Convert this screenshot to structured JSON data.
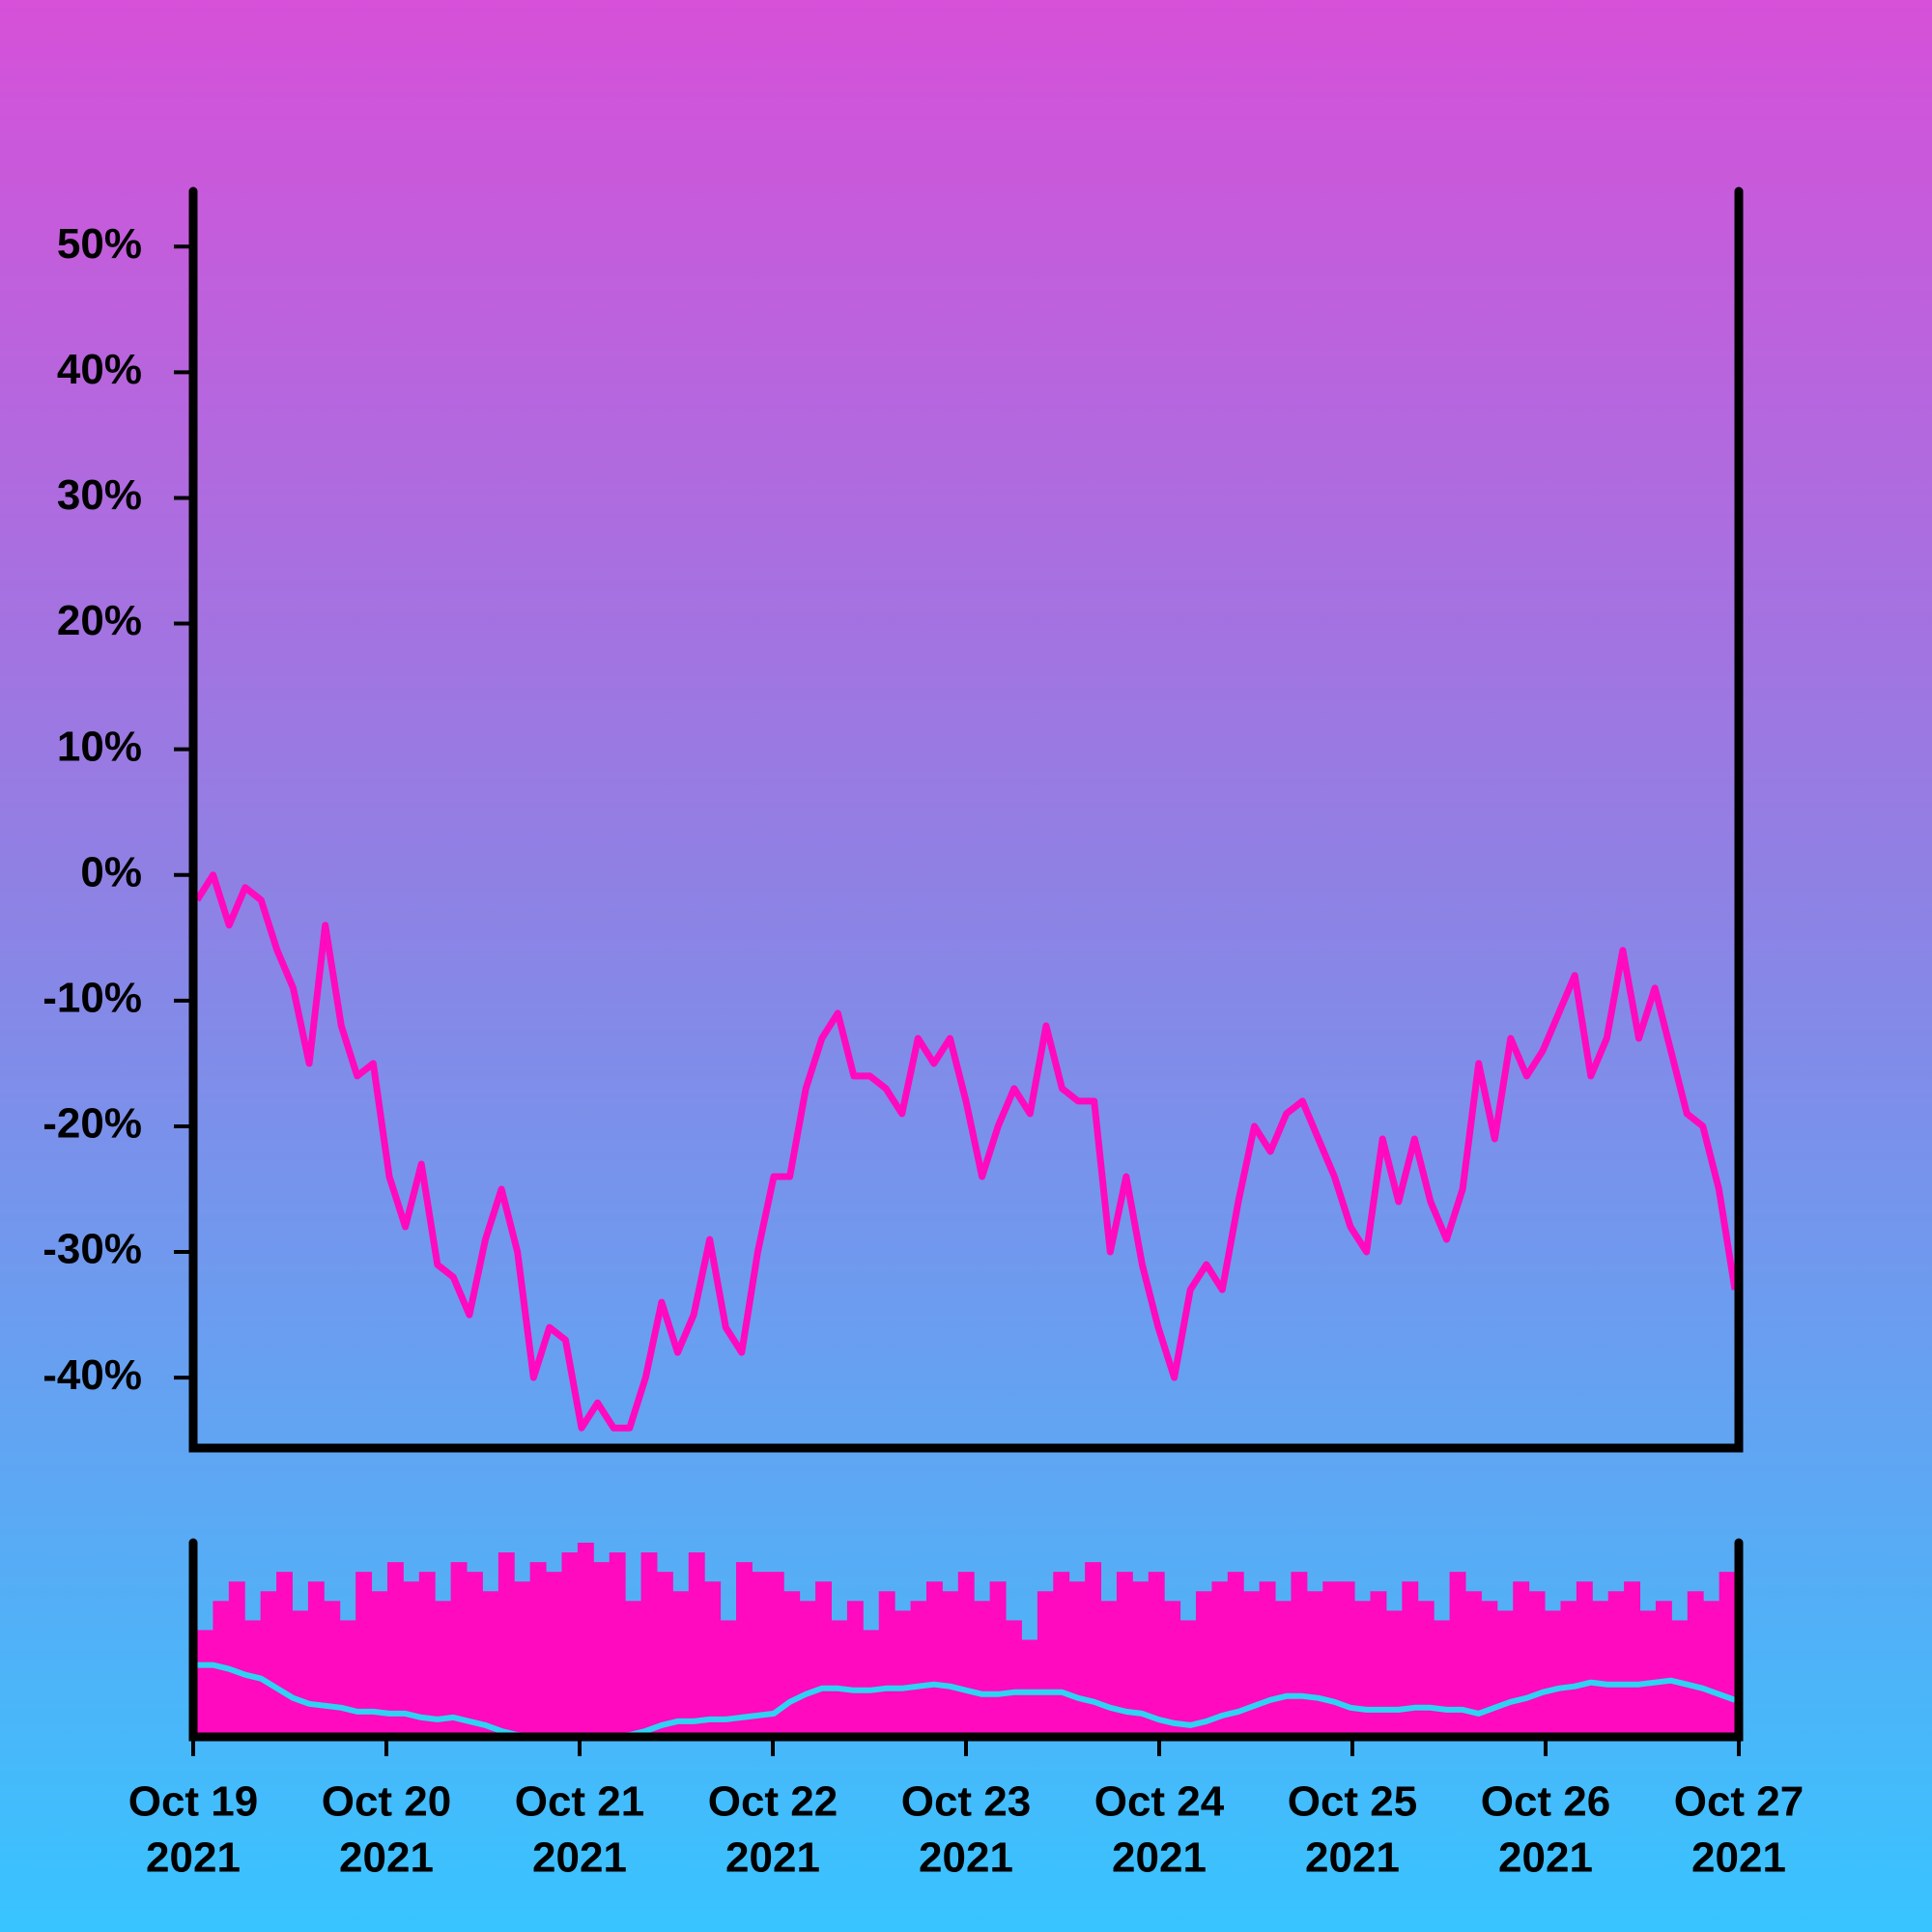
{
  "chart_data": [
    {
      "type": "line",
      "xlim": [
        "2021-10-19",
        "2021-10-27"
      ],
      "xticks": [
        {
          "value": "2021-10-19",
          "label": [
            "Oct 19",
            "2021"
          ]
        },
        {
          "value": "2021-10-20",
          "label": [
            "Oct 20",
            "2021"
          ]
        },
        {
          "value": "2021-10-21",
          "label": [
            "Oct 21",
            "2021"
          ]
        },
        {
          "value": "2021-10-22",
          "label": [
            "Oct 22",
            "2021"
          ]
        },
        {
          "value": "2021-10-23",
          "label": [
            "Oct 23",
            "2021"
          ]
        },
        {
          "value": "2021-10-24",
          "label": [
            "Oct 24",
            "2021"
          ]
        },
        {
          "value": "2021-10-25",
          "label": [
            "Oct 25",
            "2021"
          ]
        },
        {
          "value": "2021-10-26",
          "label": [
            "Oct 26",
            "2021"
          ]
        },
        {
          "value": "2021-10-27",
          "label": [
            "Oct 27",
            "2021"
          ]
        }
      ],
      "ylim": [
        -45.6,
        54.4
      ],
      "yticks": [
        {
          "value": -40,
          "label": "-40%"
        },
        {
          "value": -30,
          "label": "-30%"
        },
        {
          "value": -20,
          "label": "-20%"
        },
        {
          "value": -10,
          "label": "-10%"
        },
        {
          "value": 0,
          "label": "0%"
        },
        {
          "value": 10,
          "label": "10%"
        },
        {
          "value": 20,
          "label": "20%"
        },
        {
          "value": 30,
          "label": "30%"
        },
        {
          "value": 40,
          "label": "40%"
        },
        {
          "value": 50,
          "label": "50%"
        }
      ],
      "color": "#ff0abf",
      "values": [
        -2,
        0,
        -4,
        -1,
        -2,
        -6,
        -9,
        -15,
        -4,
        -12,
        -16,
        -15,
        -24,
        -28,
        -23,
        -31,
        -32,
        -35,
        -29,
        -25,
        -30,
        -40,
        -36,
        -37,
        -44,
        -42,
        -44,
        -44,
        -40,
        -34,
        -38,
        -35,
        -29,
        -36,
        -38,
        -30,
        -24,
        -24,
        -17,
        -13,
        -11,
        -16,
        -16,
        -17,
        -19,
        -13,
        -15,
        -13,
        -18,
        -24,
        -20,
        -17,
        -19,
        -12,
        -17,
        -18,
        -18,
        -30,
        -24,
        -31,
        -36,
        -40,
        -33,
        -31,
        -33,
        -26,
        -20,
        -22,
        -19,
        -18,
        -21,
        -24,
        -28,
        -30,
        -21,
        -26,
        -21,
        -26,
        -29,
        -25,
        -15,
        -21,
        -13,
        -16,
        -14,
        -11,
        -8,
        -16,
        -13,
        -6,
        -13,
        -9,
        -14,
        -19,
        -20,
        -25,
        -33
      ]
    },
    {
      "type": "bar",
      "xlim": [
        "2021-10-19",
        "2021-10-27"
      ],
      "ylim": [
        0,
        100
      ],
      "series": [
        {
          "type": "bar",
          "color": "#ff0abf",
          "values": [
            55,
            70,
            80,
            60,
            75,
            85,
            65,
            80,
            70,
            60,
            85,
            75,
            90,
            80,
            85,
            70,
            90,
            85,
            75,
            95,
            80,
            90,
            85,
            95,
            100,
            90,
            95,
            70,
            95,
            85,
            75,
            95,
            80,
            60,
            90,
            85,
            85,
            75,
            70,
            80,
            60,
            70,
            55,
            75,
            65,
            70,
            80,
            75,
            85,
            70,
            80,
            60,
            50,
            75,
            85,
            80,
            90,
            70,
            85,
            80,
            85,
            70,
            60,
            75,
            80,
            85,
            75,
            80,
            70,
            85,
            75,
            80,
            80,
            70,
            75,
            65,
            80,
            70,
            60,
            85,
            75,
            70,
            65,
            80,
            75,
            65,
            70,
            80,
            70,
            75,
            80,
            65,
            70,
            60,
            75,
            70,
            85
          ]
        },
        {
          "type": "line",
          "color": "#2fd2f2",
          "values": [
            37,
            37,
            35,
            32,
            30,
            25,
            20,
            17,
            16,
            15,
            13,
            13,
            12,
            12,
            10,
            9,
            10,
            8,
            6,
            3,
            1,
            0,
            0,
            0,
            0,
            0,
            0,
            1,
            3,
            6,
            8,
            8,
            9,
            9,
            10,
            11,
            12,
            18,
            22,
            25,
            25,
            24,
            24,
            25,
            25,
            26,
            27,
            26,
            24,
            22,
            22,
            23,
            23,
            23,
            23,
            20,
            18,
            15,
            13,
            12,
            9,
            7,
            6,
            8,
            11,
            13,
            16,
            19,
            21,
            21,
            20,
            18,
            15,
            14,
            14,
            14,
            15,
            15,
            14,
            14,
            12,
            15,
            18,
            20,
            23,
            25,
            26,
            28,
            27,
            27,
            27,
            28,
            29,
            27,
            25,
            22,
            19
          ]
        }
      ]
    }
  ]
}
